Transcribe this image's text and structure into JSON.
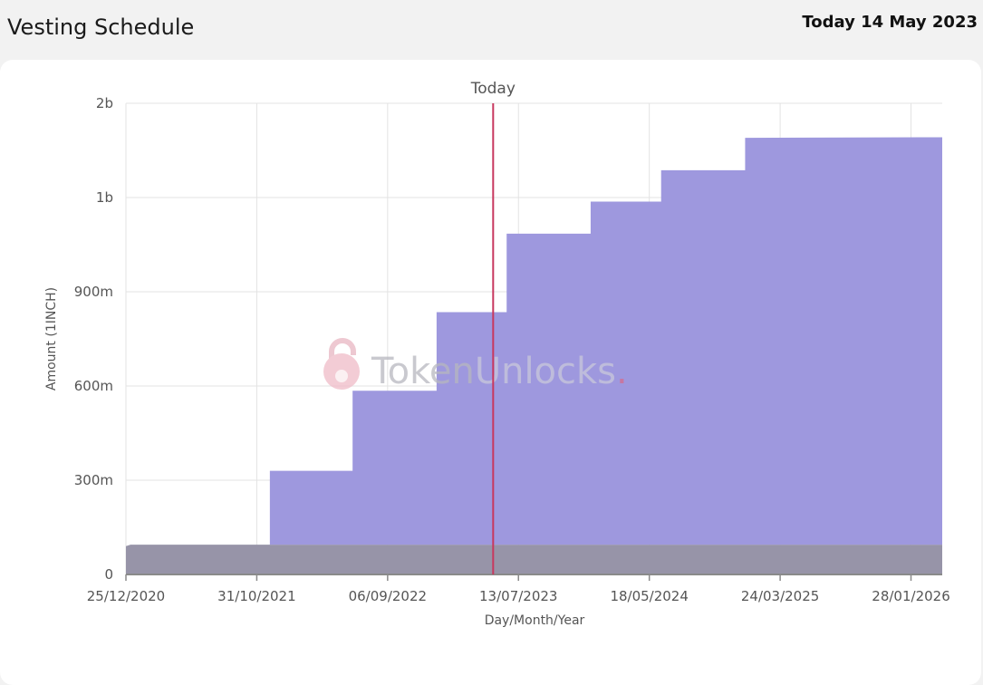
{
  "header": {
    "title": "Vesting Schedule",
    "today": "Today 14 May 2023"
  },
  "watermark": {
    "brand_a": "Token",
    "brand_b": "Unlocks",
    "dot": "."
  },
  "chart_data": {
    "type": "area",
    "stacked": true,
    "today_marker": {
      "label": "Today",
      "x": "2023-05-14"
    },
    "xlabel": "Day/Month/Year",
    "ylabel": "Amount (1INCH)",
    "y_range": [
      0,
      1500000000
    ],
    "grid": true,
    "x_range": [
      "2020-12-25",
      "2026-04-12"
    ],
    "x_ticks": [
      {
        "label": "25/12/2020",
        "date": "2020-12-25"
      },
      {
        "label": "31/10/2021",
        "date": "2021-10-31"
      },
      {
        "label": "06/09/2022",
        "date": "2022-09-06"
      },
      {
        "label": "13/07/2023",
        "date": "2023-07-13"
      },
      {
        "label": "18/05/2024",
        "date": "2024-05-18"
      },
      {
        "label": "24/03/2025",
        "date": "2025-03-24"
      },
      {
        "label": "28/01/2026",
        "date": "2026-01-28"
      }
    ],
    "y_ticks": [
      {
        "label": "0",
        "value": 0
      },
      {
        "label": "300m",
        "value": 300000000
      },
      {
        "label": "600m",
        "value": 600000000
      },
      {
        "label": "900m",
        "value": 900000000
      },
      {
        "label": "1b",
        "value": 1200000000
      },
      {
        "label": "2b",
        "value": 1500000000
      }
    ],
    "series": [
      {
        "color": "#9794a8",
        "points": [
          [
            "2020-12-25",
            90000000
          ],
          [
            "2021-01-05",
            95000000
          ],
          [
            "2026-04-12",
            95000000
          ]
        ]
      },
      {
        "color": "#9e98de",
        "points": [
          [
            "2020-12-25",
            0
          ],
          [
            "2021-12-01",
            0
          ],
          [
            "2021-12-01",
            235000000
          ],
          [
            "2022-06-15",
            235000000
          ],
          [
            "2022-06-15",
            490000000
          ],
          [
            "2022-12-31",
            490000000
          ],
          [
            "2022-12-31",
            740000000
          ],
          [
            "2023-06-15",
            740000000
          ],
          [
            "2023-06-15",
            990000000
          ],
          [
            "2023-12-31",
            990000000
          ],
          [
            "2023-12-31",
            1092000000
          ],
          [
            "2024-06-15",
            1092000000
          ],
          [
            "2024-06-15",
            1192000000
          ],
          [
            "2024-12-31",
            1192000000
          ],
          [
            "2024-12-31",
            1295000000
          ],
          [
            "2026-04-12",
            1297000000
          ]
        ]
      }
    ]
  },
  "colors": {
    "today_line": "#c8385e",
    "grid": "#e3e3e3",
    "axis": "#8a8a8a"
  }
}
